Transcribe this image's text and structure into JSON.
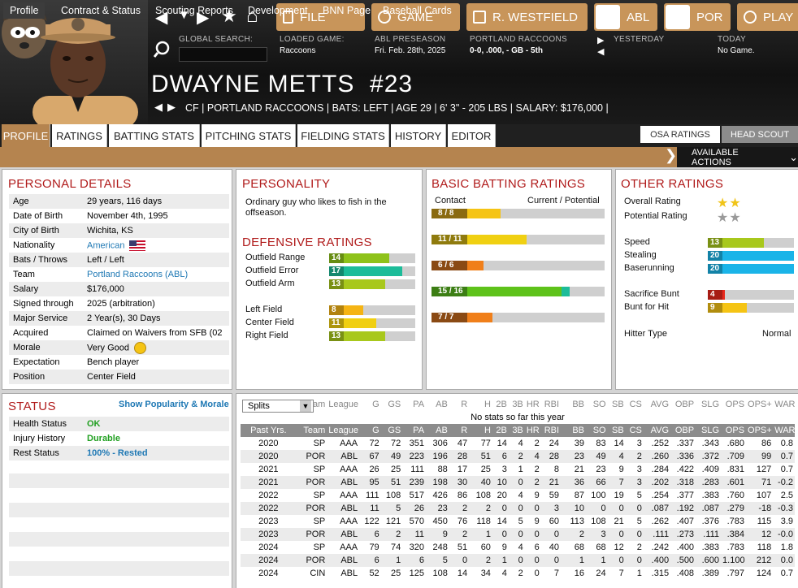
{
  "header": {
    "nav": {
      "back": "◀",
      "down": "▼",
      "forward": "▶",
      "star": "★",
      "home": "⌂"
    },
    "buttons": [
      {
        "label": "FILE",
        "icon": "file-icon"
      },
      {
        "label": "GAME",
        "icon": "globe-icon"
      },
      {
        "label": "R. WESTFIELD",
        "icon": "house-icon"
      },
      {
        "label": "ABL",
        "icon": "league-logo-icon"
      },
      {
        "label": "POR",
        "icon": "team-logo-icon"
      },
      {
        "label": "PLAY",
        "icon": "baseball-icon"
      }
    ],
    "global_search_label": "GLOBAL SEARCH:",
    "global_search_value": "",
    "loaded_game_label": "LOADED GAME:",
    "loaded_game_value": "Raccoons",
    "league_label": "ABL PRESEASON",
    "league_value": "Fri. Feb. 28th, 2025",
    "team_label": "PORTLAND RACCOONS",
    "team_value": "0-0, .000, - GB - 5th",
    "yesterday_label": "YESTERDAY",
    "today_label": "TODAY",
    "today_value": "No Game."
  },
  "player": {
    "name": "DWAYNE METTS",
    "number": "#23",
    "info": "CF | PORTLAND RACCOONS  |  BATS: LEFT  |  AGE 29  |  6' 3\" - 205 LBS  |  SALARY: $176,000  |"
  },
  "tabs": [
    {
      "label": "PROFILE",
      "active": true
    },
    {
      "label": "RATINGS"
    },
    {
      "label": "BATTING STATS"
    },
    {
      "label": "PITCHING STATS"
    },
    {
      "label": "FIELDING STATS"
    },
    {
      "label": "HISTORY"
    },
    {
      "label": "EDITOR"
    }
  ],
  "ratings_toggle": {
    "osa": "OSA RATINGS",
    "scout": "HEAD SCOUT"
  },
  "subtabs": [
    {
      "label": "Profile",
      "active": true
    },
    {
      "label": "Contract & Status"
    },
    {
      "label": "Scouting Reports"
    },
    {
      "label": "Development"
    },
    {
      "label": "BNN Page"
    },
    {
      "label": "Baseball Cards"
    }
  ],
  "available_actions": "AVAILABLE ACTIONS",
  "personal_details": {
    "title": "PERSONAL DETAILS",
    "rows": [
      {
        "k": "Age",
        "v": "29 years, 116 days"
      },
      {
        "k": "Date of Birth",
        "v": "November 4th, 1995"
      },
      {
        "k": "City of Birth",
        "v": "Wichita, KS"
      },
      {
        "k": "Nationality",
        "v": "American",
        "link": true,
        "flag": true
      },
      {
        "k": "Bats / Throws",
        "v": "Left / Left"
      },
      {
        "k": "Team",
        "v": "Portland Raccoons (ABL)",
        "link": true
      },
      {
        "k": "Salary",
        "v": "$176,000"
      },
      {
        "k": "Signed through",
        "v": "2025 (arbitration)"
      },
      {
        "k": "Major Service",
        "v": "2 Year(s), 30 Days"
      },
      {
        "k": "Acquired",
        "v": "Claimed on Waivers from SFB (02"
      },
      {
        "k": "Morale",
        "v": "Very Good",
        "smiley": true
      },
      {
        "k": "Expectation",
        "v": "Bench player"
      },
      {
        "k": "Position",
        "v": "Center Field"
      }
    ]
  },
  "personality": {
    "title": "PERSONALITY",
    "text": "Ordinary guy who likes to fish in the offseason."
  },
  "defensive": {
    "title": "DEFENSIVE RATINGS",
    "rows": [
      {
        "label": "Outfield Range",
        "value": 14,
        "color": "#8ec21a"
      },
      {
        "label": "Outfield Error",
        "value": 17,
        "color": "#1cbc99"
      },
      {
        "label": "Outfield Arm",
        "value": 13,
        "color": "#a8c81c"
      },
      {
        "label": "Left Field",
        "value": 8,
        "color": "#f5b414"
      },
      {
        "label": "Center Field",
        "value": 11,
        "color": "#f0cf12"
      },
      {
        "label": "Right Field",
        "value": 13,
        "color": "#a8c81c"
      }
    ]
  },
  "batting": {
    "title": "BASIC BATTING RATINGS",
    "header_left": "Contact",
    "header_right": "Current / Potential",
    "rows": [
      {
        "label": "Contact",
        "text": "8 / 8",
        "current": 8,
        "potential": 8,
        "color": "#f5c414",
        "dark": "#8a6a10"
      },
      {
        "label": "Gap Power",
        "text": "11 / 11",
        "current": 11,
        "potential": 11,
        "color": "#f0d012",
        "dark": "#8f7b0e"
      },
      {
        "label": "Home Run Power",
        "text": "6 / 6",
        "current": 6,
        "potential": 6,
        "color": "#f07f1a",
        "dark": "#8a4a14"
      },
      {
        "label": "Eye / Discipline",
        "text": "15 / 16",
        "current": 15,
        "potential": 16,
        "color": "#5ec21a",
        "dark": "#3c7e14",
        "potcolor": "#1cbc99"
      },
      {
        "label": "Avoid K's",
        "text": "7 / 7",
        "current": 7,
        "potential": 7,
        "color": "#f07f1a",
        "dark": "#8a4a14"
      }
    ]
  },
  "other": {
    "title": "OTHER RATINGS",
    "overall_label": "Overall Rating",
    "overall_stars": 2,
    "potential_label": "Potential Rating",
    "potential_stars": 2,
    "star_color": "#f0c419",
    "star_grey": "#9a9a9a",
    "rows1": [
      {
        "label": "Speed",
        "value": 13,
        "color": "#a8c81c"
      },
      {
        "label": "Stealing",
        "value": 20,
        "color": "#1ab4e8"
      },
      {
        "label": "Baserunning",
        "value": 20,
        "color": "#1ab4e8"
      }
    ],
    "rows2": [
      {
        "label": "Sacrifice Bunt",
        "value": 4,
        "color": "#e8281c"
      },
      {
        "label": "Bunt for Hit",
        "value": 9,
        "color": "#f5c414"
      }
    ],
    "hitter_type_label": "Hitter Type",
    "hitter_type_value": "Normal"
  },
  "status": {
    "title": "STATUS",
    "link": "Show Popularity & Morale",
    "rows": [
      {
        "k": "Health Status",
        "v": "OK",
        "color": "#22a022"
      },
      {
        "k": "Injury History",
        "v": "Durable",
        "color": "#22a022"
      },
      {
        "k": "Rest Status",
        "v": "100% - Rested",
        "color": "#1e78b4"
      }
    ]
  },
  "stats": {
    "splits": "Splits",
    "columns": [
      "Team",
      "League",
      "G",
      "GS",
      "PA",
      "AB",
      "R",
      "H",
      "2B",
      "3B",
      "HR",
      "RBI",
      "BB",
      "SO",
      "SB",
      "CS",
      "AVG",
      "OBP",
      "SLG",
      "OPS",
      "OPS+",
      "WAR"
    ],
    "no_stats": "No stats so far this year",
    "past_label": "Past Yrs.",
    "rows": [
      [
        "2020",
        "SP",
        "AAA",
        "72",
        "72",
        "351",
        "306",
        "47",
        "77",
        "14",
        "4",
        "2",
        "24",
        "39",
        "83",
        "14",
        "3",
        ".252",
        ".337",
        ".343",
        ".680",
        "86",
        "0.8"
      ],
      [
        "2020",
        "POR",
        "ABL",
        "67",
        "49",
        "223",
        "196",
        "28",
        "51",
        "6",
        "2",
        "4",
        "28",
        "23",
        "49",
        "4",
        "2",
        ".260",
        ".336",
        ".372",
        ".709",
        "99",
        "0.7"
      ],
      [
        "2021",
        "SP",
        "AAA",
        "26",
        "25",
        "111",
        "88",
        "17",
        "25",
        "3",
        "1",
        "2",
        "8",
        "21",
        "23",
        "9",
        "3",
        ".284",
        ".422",
        ".409",
        ".831",
        "127",
        "0.7"
      ],
      [
        "2021",
        "POR",
        "ABL",
        "95",
        "51",
        "239",
        "198",
        "30",
        "40",
        "10",
        "0",
        "2",
        "21",
        "36",
        "66",
        "7",
        "3",
        ".202",
        ".318",
        ".283",
        ".601",
        "71",
        "-0.2"
      ],
      [
        "2022",
        "SP",
        "AAA",
        "111",
        "108",
        "517",
        "426",
        "86",
        "108",
        "20",
        "4",
        "9",
        "59",
        "87",
        "100",
        "19",
        "5",
        ".254",
        ".377",
        ".383",
        ".760",
        "107",
        "2.5"
      ],
      [
        "2022",
        "POR",
        "ABL",
        "11",
        "5",
        "26",
        "23",
        "2",
        "2",
        "0",
        "0",
        "0",
        "3",
        "10",
        "0",
        "0",
        "0",
        ".087",
        ".192",
        ".087",
        ".279",
        "-18",
        "-0.3"
      ],
      [
        "2023",
        "SP",
        "AAA",
        "122",
        "121",
        "570",
        "450",
        "76",
        "118",
        "14",
        "5",
        "9",
        "60",
        "113",
        "108",
        "21",
        "5",
        ".262",
        ".407",
        ".376",
        ".783",
        "115",
        "3.9"
      ],
      [
        "2023",
        "POR",
        "ABL",
        "6",
        "2",
        "11",
        "9",
        "2",
        "1",
        "0",
        "0",
        "0",
        "0",
        "2",
        "3",
        "0",
        "0",
        ".111",
        ".273",
        ".111",
        ".384",
        "12",
        "-0.0"
      ],
      [
        "2024",
        "SP",
        "AAA",
        "79",
        "74",
        "320",
        "248",
        "51",
        "60",
        "9",
        "4",
        "6",
        "40",
        "68",
        "68",
        "12",
        "2",
        ".242",
        ".400",
        ".383",
        ".783",
        "118",
        "1.8"
      ],
      [
        "2024",
        "POR",
        "ABL",
        "6",
        "1",
        "6",
        "5",
        "0",
        "2",
        "1",
        "0",
        "0",
        "0",
        "1",
        "1",
        "0",
        "0",
        ".400",
        ".500",
        ".600",
        "1.100",
        "212",
        "0.0"
      ],
      [
        "2024",
        "CIN",
        "ABL",
        "52",
        "25",
        "125",
        "108",
        "14",
        "34",
        "4",
        "2",
        "0",
        "7",
        "16",
        "24",
        "7",
        "1",
        ".315",
        ".408",
        ".389",
        ".797",
        "124",
        "0.7"
      ]
    ]
  }
}
